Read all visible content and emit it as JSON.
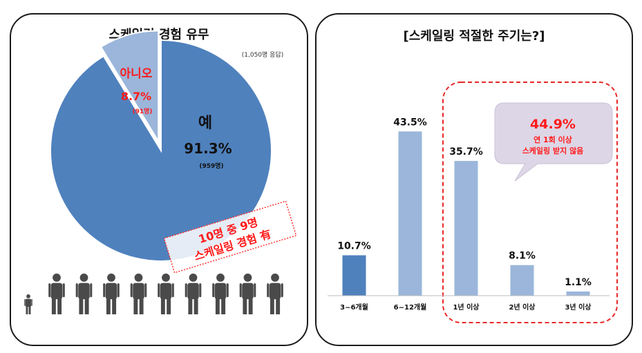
{
  "chart_data": [
    {
      "type": "pie",
      "title": "스케일링 경험 유무",
      "subtitle": "(1,050명 응답)",
      "slices": [
        {
          "label": "예",
          "percent_label": "91.3%",
          "count_label": "(959명)",
          "value": 91.3,
          "color": "#4f81bd"
        },
        {
          "label": "아니오",
          "percent_label": "8.7%",
          "count_label": "(91명)",
          "value": 8.7,
          "color": "#9bb6da"
        }
      ],
      "stamp": {
        "line1": "10명 중 9명",
        "line2": "스케일링 경험 有",
        "color": "#ff2020"
      }
    },
    {
      "type": "bar",
      "title": "[스케일링 적절한 주기는?]",
      "categories": [
        "3~6개월",
        "6~12개월",
        "1년 이상",
        "2년 이상",
        "3년 이상"
      ],
      "values": [
        10.7,
        43.5,
        35.7,
        8.1,
        1.1
      ],
      "value_labels": [
        "10.7%",
        "43.5%",
        "35.7%",
        "8.1%",
        "1.1%"
      ],
      "colors": [
        "#4f81bd",
        "#9bb6da",
        "#9bb6da",
        "#9bb6da",
        "#9bb6da"
      ],
      "ylim": [
        0,
        50
      ],
      "grid": false,
      "callout": {
        "value": "44.9%",
        "line1": "연 1회 이상",
        "line2": "스케일링 받지 않음"
      }
    }
  ]
}
